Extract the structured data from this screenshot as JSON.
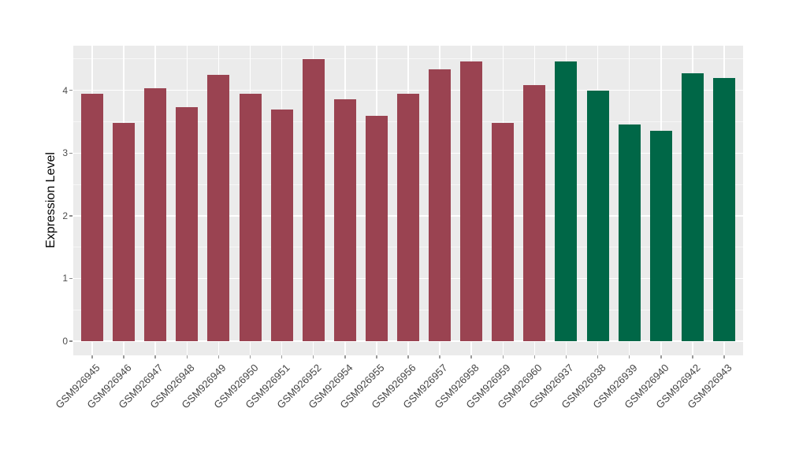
{
  "chart_data": {
    "type": "bar",
    "title": "",
    "xlabel": "",
    "ylabel": "Expression Level",
    "categories": [
      "GSM926945",
      "GSM926946",
      "GSM926947",
      "GSM926948",
      "GSM926949",
      "GSM926950",
      "GSM926951",
      "GSM926952",
      "GSM926954",
      "GSM926955",
      "GSM926956",
      "GSM926957",
      "GSM926958",
      "GSM926959",
      "GSM926960",
      "GSM926937",
      "GSM926938",
      "GSM926939",
      "GSM926940",
      "GSM926942",
      "GSM926943"
    ],
    "values": [
      3.95,
      3.48,
      4.03,
      3.73,
      4.25,
      3.95,
      3.7,
      4.5,
      3.86,
      3.6,
      3.95,
      4.33,
      4.46,
      3.48,
      4.08,
      4.46,
      4.0,
      3.46,
      3.36,
      4.27,
      4.2
    ],
    "bar_colors": [
      "#9A4351",
      "#9A4351",
      "#9A4351",
      "#9A4351",
      "#9A4351",
      "#9A4351",
      "#9A4351",
      "#9A4351",
      "#9A4351",
      "#9A4351",
      "#9A4351",
      "#9A4351",
      "#9A4351",
      "#9A4351",
      "#9A4351",
      "#006747",
      "#006747",
      "#006747",
      "#006747",
      "#006747",
      "#006747"
    ],
    "group_colors": {
      "left_group": "#9A4351",
      "right_group": "#006747"
    },
    "yticks": [
      0,
      1,
      2,
      3,
      4
    ],
    "minor_gridlines": [
      0.5,
      1.5,
      2.5,
      3.5,
      4.5
    ],
    "ylim": [
      -0.23,
      4.72
    ],
    "grid": "on",
    "legend": "none",
    "panel_background": "#EBEBEB",
    "gridline_color": "#FFFFFF",
    "axis_text_color": "#4D4D4D"
  }
}
